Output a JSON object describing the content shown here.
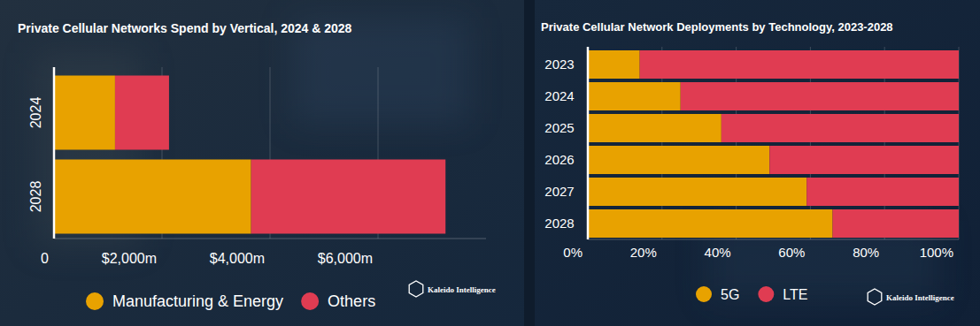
{
  "chart_data": [
    {
      "type": "bar",
      "title": "Private Cellular Networks Spend by Vertical, 2024 & 2028",
      "orientation": "horizontal",
      "stacked": true,
      "categories": [
        "2024",
        "2028"
      ],
      "series": [
        {
          "name": "Manufacturing & Energy",
          "color": "#e8a200",
          "values": [
            1130,
            3650
          ]
        },
        {
          "name": "Others",
          "color": "#e03c52",
          "values": [
            1000,
            3600
          ]
        }
      ],
      "xlim": [
        0,
        8000
      ],
      "xticks": [
        0,
        {
          "value": 2000,
          "label": "$2,000m"
        },
        {
          "value": 4000,
          "label": "$4,000m"
        },
        {
          "value": 6000,
          "label": "$6,000m"
        }
      ],
      "grid": true,
      "legend": "bottom",
      "annotations": [
        "Kaleido Intelligence"
      ]
    },
    {
      "type": "bar",
      "title": "Private Cellular Network Deployments by Technology, 2023-2028",
      "orientation": "horizontal",
      "stacked": true,
      "categories": [
        "2023",
        "2024",
        "2025",
        "2026",
        "2027",
        "2028"
      ],
      "series": [
        {
          "name": "5G",
          "color": "#e8a200",
          "values": [
            14,
            25,
            36,
            49,
            59,
            66
          ]
        },
        {
          "name": "LTE",
          "color": "#e03c52",
          "values": [
            86,
            75,
            64,
            51,
            41,
            34
          ]
        }
      ],
      "xlim": [
        0,
        100
      ],
      "xticks": [
        {
          "value": 0,
          "label": "0%"
        },
        {
          "value": 20,
          "label": "20%"
        },
        {
          "value": 40,
          "label": "40%"
        },
        {
          "value": 60,
          "label": "60%"
        },
        {
          "value": 80,
          "label": "80%"
        },
        {
          "value": 100,
          "label": "100%"
        }
      ],
      "grid": true,
      "legend": "bottom",
      "annotations": [
        "Kaleido Intelligence"
      ]
    }
  ]
}
